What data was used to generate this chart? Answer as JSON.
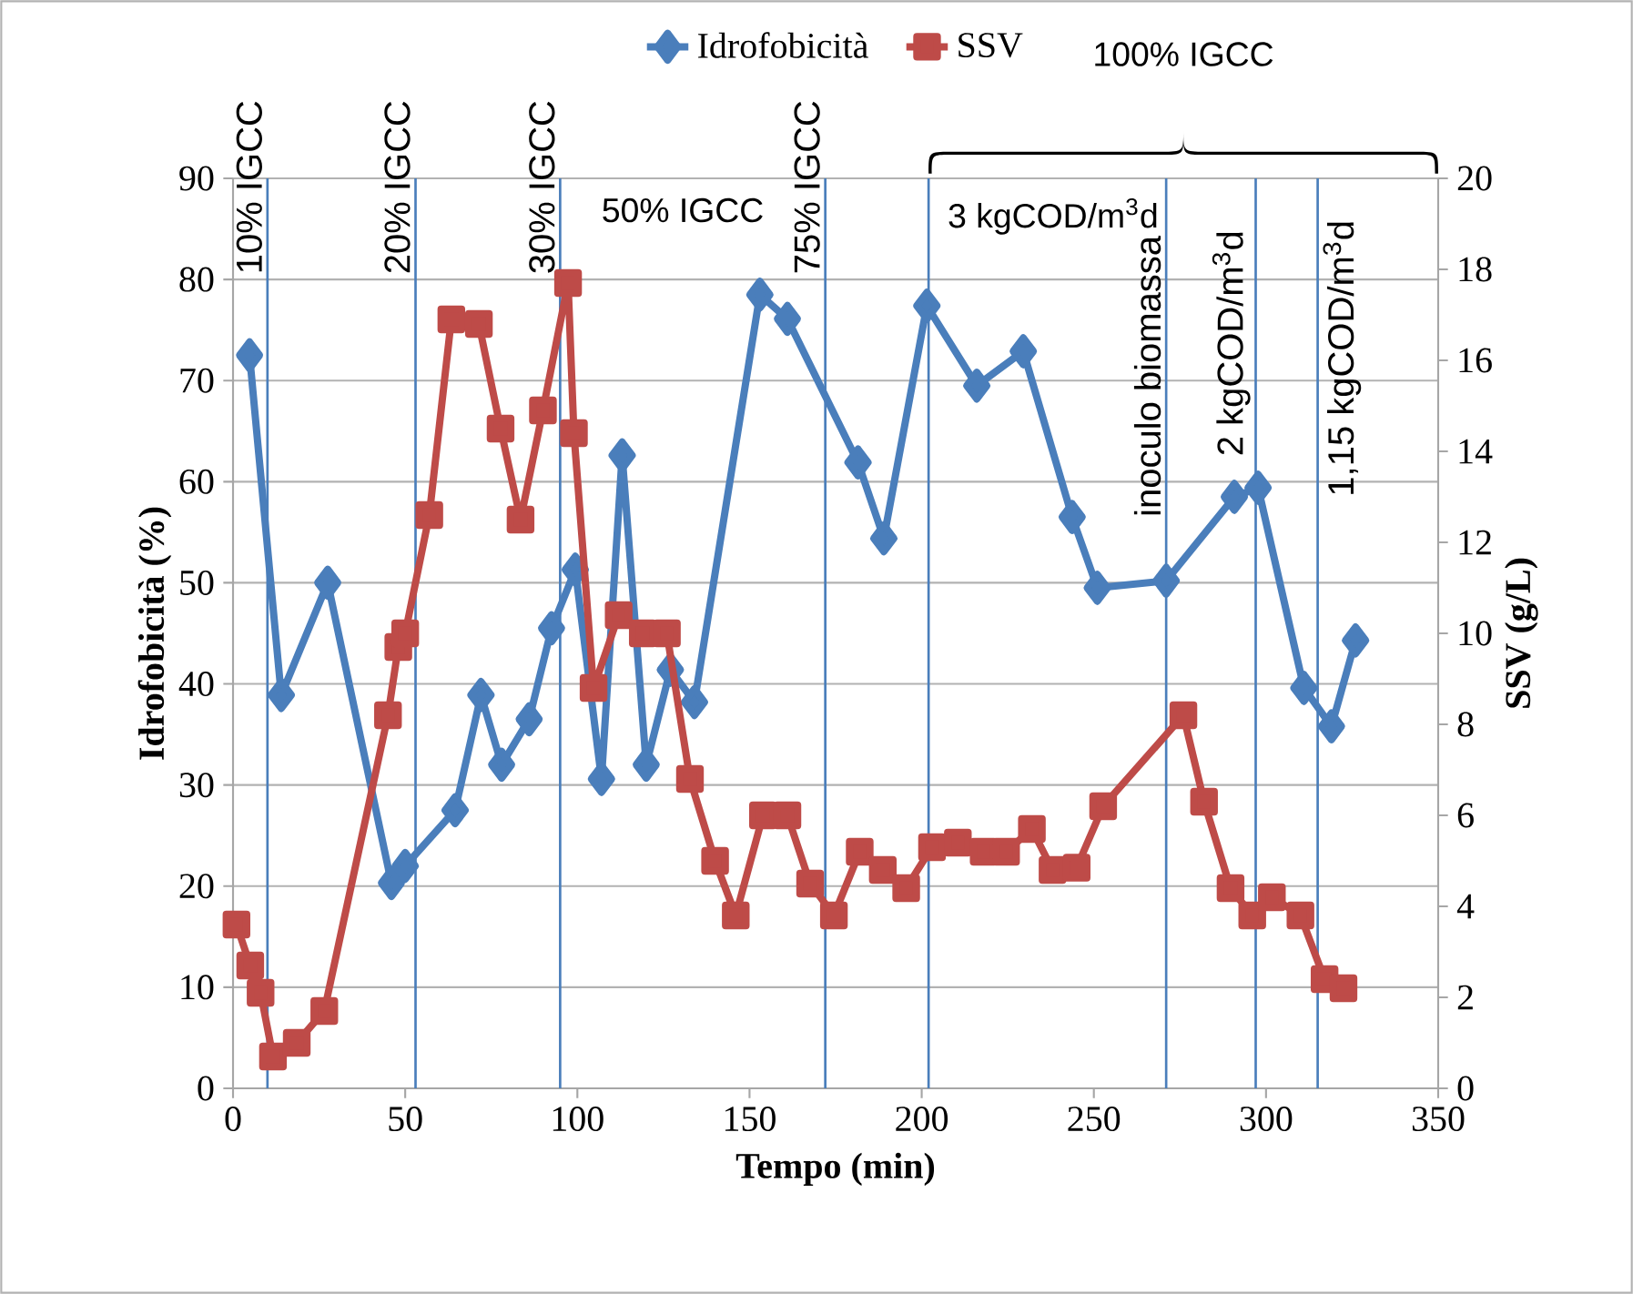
{
  "chart_data": {
    "type": "line",
    "xlabel": "Tempo (min)",
    "ylabel": "Idrofobicità (%)",
    "y2label": "SSV (g/L)",
    "series": [
      {
        "name": "Idrofobicità",
        "color": "#4a7ebb",
        "marker": "diamond",
        "x": [
          4.8,
          14,
          27.5,
          46,
          50,
          64.5,
          72,
          78,
          86,
          92.5,
          99.4,
          107,
          113,
          120,
          127,
          134,
          153,
          161,
          181.5,
          189,
          201.5,
          216,
          229.5,
          243.7,
          251,
          271,
          290.8,
          297.7,
          311,
          319,
          326
        ],
        "values": [
          72.5,
          38.9,
          50,
          20.3,
          22,
          27.5,
          38.9,
          32,
          36.5,
          45.5,
          51.3,
          30.6,
          62.6,
          32,
          41.4,
          38.2,
          78.5,
          76.1,
          61.9,
          54.4,
          77.4,
          69.5,
          72.9,
          56.5,
          49.5,
          50.2,
          58.5,
          59.4,
          39.6,
          35.8,
          44.3
        ]
      },
      {
        "name": "SSV",
        "color": "#be4b48",
        "marker": "square",
        "axis": "y2",
        "x": [
          1,
          5,
          8,
          11.6,
          18.5,
          26.5,
          45,
          48,
          50,
          57,
          63.4,
          71.4,
          77.7,
          83.5,
          90,
          97.3,
          99,
          104.7,
          112,
          119,
          126,
          132.7,
          140,
          146,
          153.9,
          161,
          167.6,
          174.5,
          182,
          188.7,
          195.5,
          203,
          210.5,
          218,
          224.5,
          232,
          238,
          245,
          252.7,
          276,
          282,
          289.7,
          296,
          301.7,
          310,
          317,
          322.5
        ],
        "values": [
          3.6,
          2.7,
          2.1,
          0.7,
          1.0,
          1.7,
          8.2,
          9.7,
          10.0,
          12.6,
          16.9,
          16.8,
          14.5,
          12.5,
          14.9,
          17.7,
          14.4,
          8.8,
          10.4,
          10.0,
          10.0,
          6.8,
          5.0,
          3.8,
          6.0,
          6.0,
          4.5,
          3.8,
          5.2,
          4.8,
          4.4,
          5.3,
          5.4,
          5.2,
          5.2,
          5.7,
          4.8,
          4.85,
          6.2,
          8.2,
          6.3,
          4.4,
          3.8,
          4.2,
          3.8,
          2.4,
          2.2
        ]
      }
    ],
    "xlim": [
      0,
      350
    ],
    "xticks": [
      0,
      50,
      100,
      150,
      200,
      250,
      300,
      350
    ],
    "ylim": [
      0,
      90
    ],
    "yticks": [
      0,
      10,
      20,
      30,
      40,
      50,
      60,
      70,
      80,
      90
    ],
    "y2lim": [
      0,
      20
    ],
    "y2ticks": [
      0,
      2,
      4,
      6,
      8,
      10,
      12,
      14,
      16,
      18,
      20
    ],
    "grid": "y",
    "legend": "top",
    "ref_lines": [
      {
        "axis": "x",
        "value": 10,
        "label": "10% IGCC",
        "color": "#4a7ebb"
      },
      {
        "axis": "x",
        "value": 53,
        "label": "20% IGCC",
        "color": "#4a7ebb"
      },
      {
        "axis": "x",
        "value": 95,
        "label": "30% IGCC",
        "color": "#4a7ebb"
      },
      {
        "axis": "x",
        "value": 172,
        "label": "75% IGCC",
        "color": "#4a7ebb"
      },
      {
        "axis": "x",
        "value": 202,
        "color": "#4a7ebb"
      },
      {
        "axis": "x",
        "value": 271,
        "label": "inoculo biomassa",
        "color": "#4a7ebb"
      },
      {
        "axis": "x",
        "value": 297,
        "label": "2 kgCOD/m$^{3}$d",
        "color": "#4a7ebb"
      },
      {
        "axis": "x",
        "value": 315,
        "label": "1,15 kgCOD/m$^{3}$d",
        "color": "#4a7ebb"
      }
    ],
    "annotations": [
      "50% IGCC",
      "3 kgCOD/m$^{3}$d",
      "100% IGCC"
    ]
  }
}
